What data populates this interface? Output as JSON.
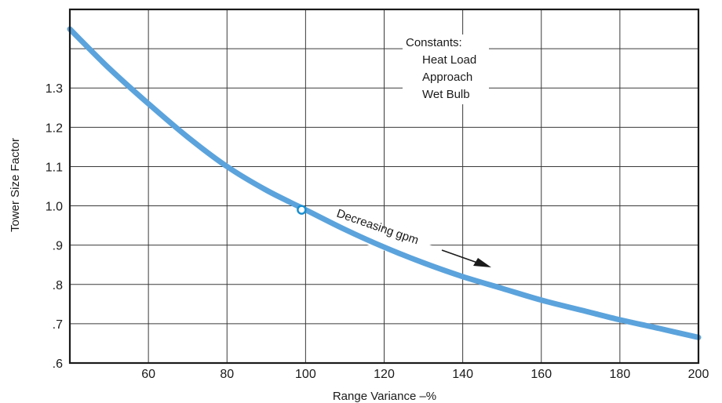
{
  "chart_data": {
    "type": "line",
    "title": "",
    "xlabel": "Range Variance –%",
    "ylabel": "Tower Size Factor",
    "xlim": [
      40,
      200
    ],
    "ylim": [
      0.6,
      1.46
    ],
    "x_ticks": [
      {
        "value": 60,
        "label": "60"
      },
      {
        "value": 80,
        "label": "80"
      },
      {
        "value": 100,
        "label": "100"
      },
      {
        "value": 120,
        "label": "120"
      },
      {
        "value": 140,
        "label": "140"
      },
      {
        "value": 160,
        "label": "160"
      },
      {
        "value": 180,
        "label": "180"
      },
      {
        "value": 200,
        "label": "200"
      }
    ],
    "y_ticks": [
      {
        "value": 0.6,
        "label": ".6"
      },
      {
        "value": 0.7,
        "label": ".7"
      },
      {
        "value": 0.8,
        "label": ".8"
      },
      {
        "value": 0.9,
        "label": ".9"
      },
      {
        "value": 1.0,
        "label": "1.0"
      },
      {
        "value": 1.1,
        "label": "1.1"
      },
      {
        "value": 1.2,
        "label": "1.2"
      },
      {
        "value": 1.3,
        "label": "1.3"
      }
    ],
    "extra_gridlines_y": [
      1.4
    ],
    "grid": true,
    "series": [
      {
        "color": "#5ba3dc",
        "x": [
          40,
          50,
          60,
          70,
          80,
          90,
          100,
          110,
          120,
          130,
          140,
          150,
          160,
          170,
          180,
          190,
          200
        ],
        "y": [
          1.45,
          1.35,
          1.26,
          1.175,
          1.1,
          1.04,
          0.99,
          0.94,
          0.895,
          0.855,
          0.82,
          0.79,
          0.76,
          0.735,
          0.71,
          0.688,
          0.665
        ]
      }
    ],
    "marker": {
      "x": 99,
      "y": 0.99,
      "color": "#1a8fd0"
    },
    "annotations": {
      "constants_title": "Constants:",
      "constants_items": [
        "Heat Load",
        "Approach",
        "Wet Bulb"
      ],
      "curve_label": "Decreasing gpm"
    }
  }
}
